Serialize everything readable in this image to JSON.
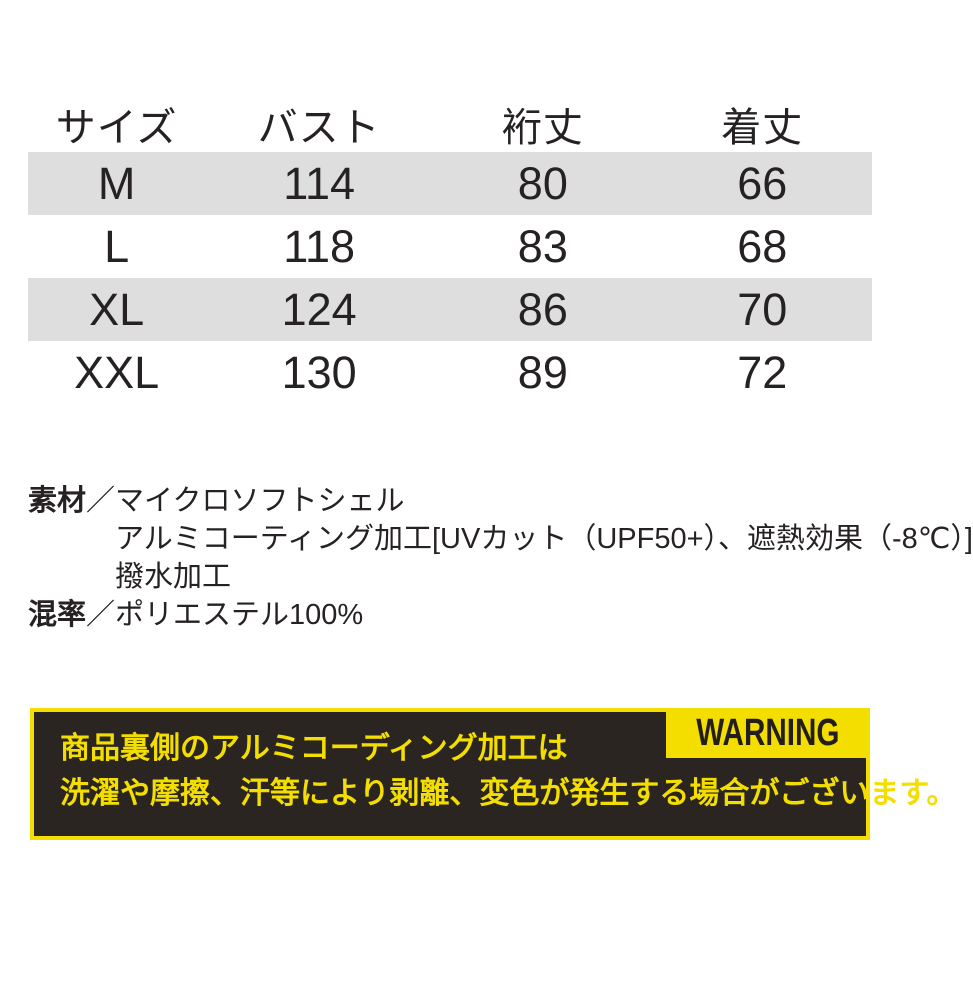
{
  "size_table": {
    "headers": [
      "サイズ",
      "バスト",
      "裄丈",
      "着丈"
    ],
    "rows": [
      [
        "M",
        "114",
        "80",
        "66"
      ],
      [
        "L",
        "118",
        "83",
        "68"
      ],
      [
        "XL",
        "124",
        "86",
        "70"
      ],
      [
        "XXL",
        "130",
        "89",
        "72"
      ]
    ]
  },
  "specs": {
    "material_label": "素材",
    "separator": "／",
    "material_lines": [
      "マイクロソフトシェル",
      "アルミコーティング加工[UVカット（UPF50+）、遮熱効果（-8℃）]",
      "撥水加工"
    ],
    "blend_label": "混率",
    "blend_value": "ポリエステル100%"
  },
  "warning": {
    "badge": "WARNING",
    "lines": [
      "商品裏側のアルミコーディング加工は",
      "洗濯や摩擦、汗等により剥離、変色が発生する場合がございます。"
    ]
  },
  "colors": {
    "warning_yellow": "#f3de00",
    "warning_background": "#2b2521",
    "row_stripe_gray": "#dddedd",
    "text_dark": "#262223"
  }
}
